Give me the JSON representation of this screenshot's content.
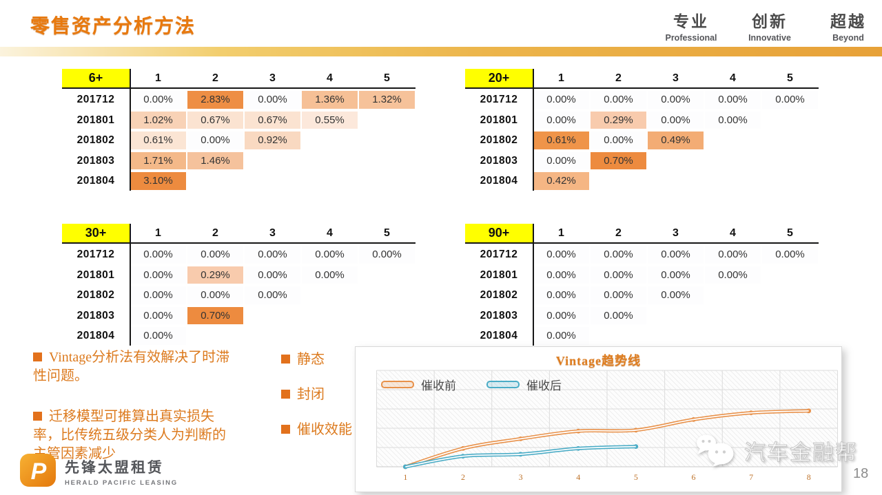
{
  "slide": {
    "title": "零售资产分析方法",
    "page_number": "18"
  },
  "header_motto": [
    {
      "cn": "专业",
      "en": "Professional"
    },
    {
      "cn": "创新",
      "en": "Innovative"
    },
    {
      "cn": "超越",
      "en": "Beyond"
    }
  ],
  "tables": [
    {
      "label": "6+",
      "columns": [
        "1",
        "2",
        "3",
        "4",
        "5"
      ],
      "rows": [
        {
          "label": "201712",
          "cells": [
            {
              "v": "0.00%",
              "c": "#FDFDFE"
            },
            {
              "v": "2.83%",
              "c": "#EE8E44"
            },
            {
              "v": "0.00%",
              "c": "#FDFDFE"
            },
            {
              "v": "1.36%",
              "c": "#F6C096"
            },
            {
              "v": "1.32%",
              "c": "#F6C29A"
            }
          ]
        },
        {
          "label": "201801",
          "cells": [
            {
              "v": "1.02%",
              "c": "#F8D2B6"
            },
            {
              "v": "0.67%",
              "c": "#FBE3D1"
            },
            {
              "v": "0.67%",
              "c": "#FBE3D1"
            },
            {
              "v": "0.55%",
              "c": "#FCE8DB"
            }
          ]
        },
        {
          "label": "201802",
          "cells": [
            {
              "v": "0.61%",
              "c": "#FBE5D4"
            },
            {
              "v": "0.00%",
              "c": "#FDFDFE"
            },
            {
              "v": "0.92%",
              "c": "#F9D9C1"
            }
          ]
        },
        {
          "label": "201803",
          "cells": [
            {
              "v": "1.71%",
              "c": "#F4B989"
            },
            {
              "v": "1.46%",
              "c": "#F5C29C"
            }
          ]
        },
        {
          "label": "201804",
          "cells": [
            {
              "v": "3.10%",
              "c": "#ED8B3F"
            }
          ]
        }
      ]
    },
    {
      "label": "20+",
      "columns": [
        "1",
        "2",
        "3",
        "4",
        "5"
      ],
      "rows": [
        {
          "label": "201712",
          "cells": [
            {
              "v": "0.00%",
              "c": "#FDFDFE"
            },
            {
              "v": "0.00%",
              "c": "#FDFDFE"
            },
            {
              "v": "0.00%",
              "c": "#FDFDFE"
            },
            {
              "v": "0.00%",
              "c": "#FDFDFE"
            },
            {
              "v": "0.00%",
              "c": "#FDFDFE"
            }
          ]
        },
        {
          "label": "201801",
          "cells": [
            {
              "v": "0.00%",
              "c": "#FDFDFE"
            },
            {
              "v": "0.29%",
              "c": "#F8CBAD"
            },
            {
              "v": "0.00%",
              "c": "#FDFDFE"
            },
            {
              "v": "0.00%",
              "c": "#FDFDFE"
            }
          ]
        },
        {
          "label": "201802",
          "cells": [
            {
              "v": "0.61%",
              "c": "#EF9449"
            },
            {
              "v": "0.00%",
              "c": "#FDFDFE"
            },
            {
              "v": "0.49%",
              "c": "#F3AC74"
            }
          ]
        },
        {
          "label": "201803",
          "cells": [
            {
              "v": "0.00%",
              "c": "#FDFDFE"
            },
            {
              "v": "0.70%",
              "c": "#ED8B3F"
            }
          ]
        },
        {
          "label": "201804",
          "cells": [
            {
              "v": "0.42%",
              "c": "#F5B684"
            }
          ]
        }
      ]
    },
    {
      "label": "30+",
      "columns": [
        "1",
        "2",
        "3",
        "4",
        "5"
      ],
      "rows": [
        {
          "label": "201712",
          "cells": [
            {
              "v": "0.00%",
              "c": "#FDFDFE"
            },
            {
              "v": "0.00%",
              "c": "#FDFDFE"
            },
            {
              "v": "0.00%",
              "c": "#FDFDFE"
            },
            {
              "v": "0.00%",
              "c": "#FDFDFE"
            },
            {
              "v": "0.00%",
              "c": "#FDFDFE"
            }
          ]
        },
        {
          "label": "201801",
          "cells": [
            {
              "v": "0.00%",
              "c": "#FDFDFE"
            },
            {
              "v": "0.29%",
              "c": "#F8CBAD"
            },
            {
              "v": "0.00%",
              "c": "#FDFDFE"
            },
            {
              "v": "0.00%",
              "c": "#FDFDFE"
            }
          ]
        },
        {
          "label": "201802",
          "cells": [
            {
              "v": "0.00%",
              "c": "#FDFDFE"
            },
            {
              "v": "0.00%",
              "c": "#FDFDFE"
            },
            {
              "v": "0.00%",
              "c": "#FDFDFE"
            }
          ]
        },
        {
          "label": "201803",
          "cells": [
            {
              "v": "0.00%",
              "c": "#FDFDFE"
            },
            {
              "v": "0.70%",
              "c": "#ED8B3F"
            }
          ]
        },
        {
          "label": "201804",
          "cells": [
            {
              "v": "0.00%",
              "c": "#FDFDFE"
            }
          ]
        }
      ]
    },
    {
      "label": "90+",
      "columns": [
        "1",
        "2",
        "3",
        "4",
        "5"
      ],
      "rows": [
        {
          "label": "201712",
          "cells": [
            {
              "v": "0.00%",
              "c": "#FDFDFE"
            },
            {
              "v": "0.00%",
              "c": "#FDFDFE"
            },
            {
              "v": "0.00%",
              "c": "#FDFDFE"
            },
            {
              "v": "0.00%",
              "c": "#FDFDFE"
            },
            {
              "v": "0.00%",
              "c": "#FDFDFE"
            }
          ]
        },
        {
          "label": "201801",
          "cells": [
            {
              "v": "0.00%",
              "c": "#FDFDFE"
            },
            {
              "v": "0.00%",
              "c": "#FDFDFE"
            },
            {
              "v": "0.00%",
              "c": "#FDFDFE"
            },
            {
              "v": "0.00%",
              "c": "#FDFDFE"
            }
          ]
        },
        {
          "label": "201802",
          "cells": [
            {
              "v": "0.00%",
              "c": "#FDFDFE"
            },
            {
              "v": "0.00%",
              "c": "#FDFDFE"
            },
            {
              "v": "0.00%",
              "c": "#FDFDFE"
            }
          ]
        },
        {
          "label": "201803",
          "cells": [
            {
              "v": "0.00%",
              "c": "#FDFDFE"
            },
            {
              "v": "0.00%",
              "c": "#FDFDFE"
            }
          ]
        },
        {
          "label": "201804",
          "cells": [
            {
              "v": "0.00%",
              "c": "#FDFDFE"
            }
          ]
        }
      ]
    }
  ],
  "notes_left": [
    "Vintage分析法有效解决了时滞性问题。",
    "迁移模型可推算出真实损失率，比传统五级分类人为判断的主管因素减少"
  ],
  "notes_middle": [
    "静态",
    "封闭",
    "催收效能"
  ],
  "chart_data": {
    "type": "line",
    "title": "Vintage趋势线",
    "x": [
      1,
      2,
      3,
      4,
      5,
      6,
      7,
      8
    ],
    "series": [
      {
        "name": "催收前",
        "color": "#E8914A",
        "values": [
          0,
          0.19,
          0.29,
          0.37,
          0.38,
          0.49,
          0.56,
          0.58
        ]
      },
      {
        "name": "催收后",
        "color": "#4BACC6",
        "values": [
          0,
          0.11,
          0.13,
          0.19,
          0.21,
          null,
          null,
          null
        ]
      }
    ],
    "xlabel": "",
    "ylabel": "",
    "ylim": [
      0,
      1
    ],
    "grid": true,
    "legend_position": "inside-top-left",
    "y_ticks_visible": false
  },
  "watermark": {
    "text": "汽车金融帮"
  },
  "footer_logo": {
    "cn": "先锋太盟租赁",
    "en": "HERALD PACIFIC LEASING"
  },
  "colors": {
    "title_orange": "#E8790E",
    "accent_bar_gold": "#E7A138",
    "table_header_yellow": "#FFFF00",
    "heat_max_orange": "#ED8B3F",
    "note_orange": "#DC7A1E",
    "series_pre_collection": "#E8914A",
    "series_post_collection": "#4BACC6"
  }
}
